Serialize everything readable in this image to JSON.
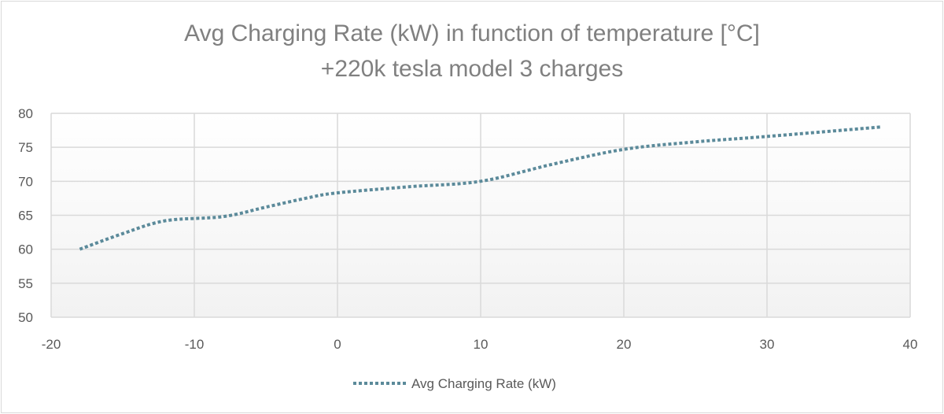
{
  "chart_data": {
    "type": "line",
    "title": "Avg Charging Rate (kW) in function of temperature [°C]",
    "subtitle": "+220k tesla model 3 charges",
    "xlabel": "",
    "ylabel": "",
    "xlim": [
      -20,
      40
    ],
    "ylim": [
      50,
      80
    ],
    "xticks": [
      "-20",
      "-10",
      "0",
      "10",
      "20",
      "30",
      "40"
    ],
    "yticks": [
      "50",
      "55",
      "60",
      "65",
      "70",
      "75",
      "80"
    ],
    "grid": true,
    "smooth": true,
    "legend_position": "bottom",
    "series": [
      {
        "name": "Avg Charging Rate (kW)",
        "color": "#5b8a9a",
        "line_style": "dotted",
        "x": [
          -18,
          -15,
          -12,
          -8,
          -5,
          -2,
          0,
          5,
          10,
          15,
          20,
          25,
          30,
          38
        ],
        "y": [
          60,
          62.3,
          64.2,
          64.8,
          66.2,
          67.6,
          68.3,
          69.2,
          70,
          72.5,
          74.7,
          75.8,
          76.6,
          78
        ]
      }
    ]
  }
}
